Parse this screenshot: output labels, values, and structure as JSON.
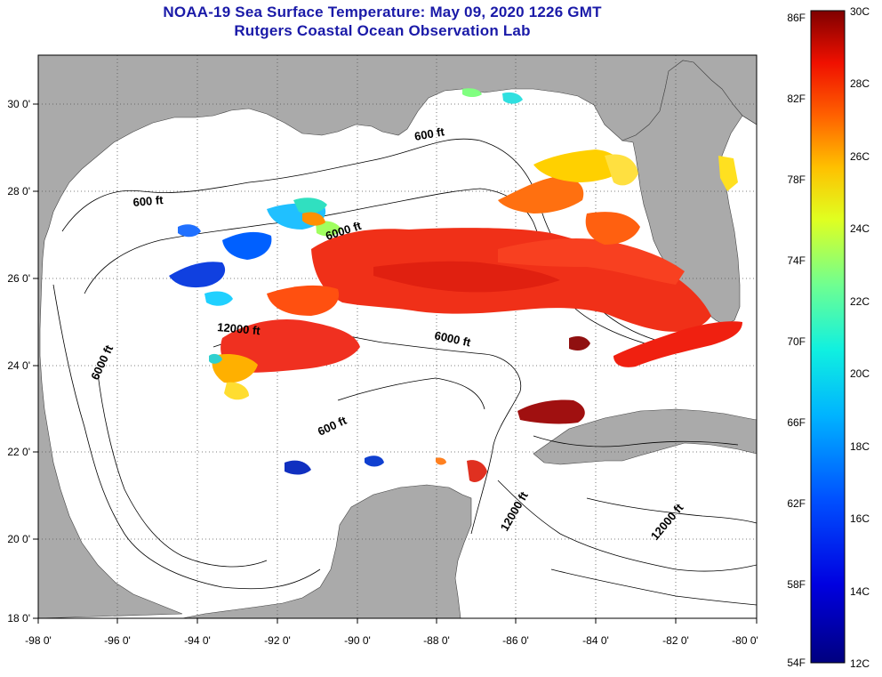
{
  "title": {
    "line1": "NOAA-19 Sea Surface Temperature:  May 09, 2020 1226 GMT",
    "line2": "Rutgers Coastal Ocean Observation Lab"
  },
  "colors": {
    "title": "#1a1aa8",
    "land": "#aaaaaa",
    "water": "#ffffff",
    "grid": "#555555"
  },
  "axes": {
    "longitude_ticks": [
      "-98 0'",
      "-96 0'",
      "-94 0'",
      "-92 0'",
      "-90 0'",
      "-88 0'",
      "-86 0'",
      "-84 0'",
      "-82 0'",
      "-80 0'"
    ],
    "latitude_ticks": [
      "30 0'",
      "28 0'",
      "26 0'",
      "24 0'",
      "22 0'",
      "20 0'",
      "18 0'"
    ]
  },
  "contour_labels": [
    "600 ft",
    "600 ft",
    "6000 ft",
    "6000 ft",
    "12000 ft",
    "6000 ft",
    "600 ft",
    "12000 ft",
    "12000 ft"
  ],
  "colorbar": {
    "fahrenheit": [
      "86F",
      "82F",
      "78F",
      "74F",
      "70F",
      "66F",
      "62F",
      "58F",
      "54F"
    ],
    "celsius": [
      "30C",
      "28C",
      "26C",
      "24C",
      "22C",
      "20C",
      "18C",
      "16C",
      "14C",
      "12C"
    ],
    "range_c": [
      12,
      30
    ],
    "range_f": [
      54,
      86
    ]
  }
}
